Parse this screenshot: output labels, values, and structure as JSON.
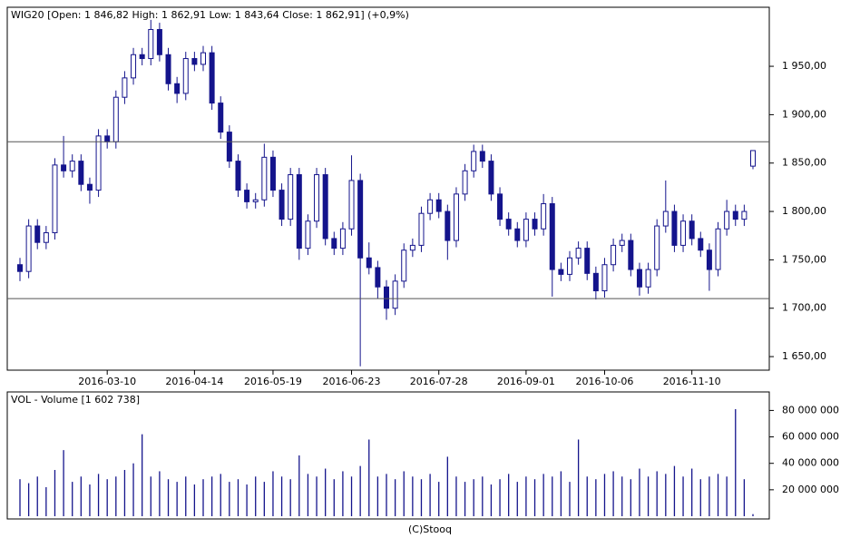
{
  "chart_data": [
    {
      "type": "candlestick",
      "title": "WIG20 [Open: 1 846,82  High: 1 862,91  Low: 1 843,64  Close: 1 862,91] (+0,9%)",
      "categories": [
        null,
        null,
        null,
        null,
        null,
        null,
        null,
        null,
        null,
        null,
        "2016-03-10",
        null,
        null,
        null,
        null,
        null,
        null,
        null,
        null,
        null,
        "2016-04-14",
        null,
        null,
        null,
        null,
        null,
        null,
        null,
        null,
        "2016-05-19",
        null,
        null,
        null,
        null,
        null,
        null,
        null,
        null,
        "2016-06-23",
        null,
        null,
        null,
        null,
        null,
        null,
        null,
        null,
        null,
        "2016-07-28",
        null,
        null,
        null,
        null,
        null,
        null,
        null,
        null,
        null,
        "2016-09-01",
        null,
        null,
        null,
        null,
        null,
        null,
        null,
        null,
        "2016-10-06",
        null,
        null,
        null,
        null,
        null,
        null,
        null,
        null,
        null,
        "2016-11-10",
        null,
        null,
        null,
        null,
        null,
        null,
        null
      ],
      "open": [
        1745,
        1738,
        1785,
        1768,
        1778,
        1848,
        1842,
        1852,
        1828,
        1822,
        1878,
        1872,
        1918,
        1938,
        1962,
        1958,
        1988,
        1962,
        1932,
        1922,
        1958,
        1952,
        1964,
        1912,
        1882,
        1852,
        1822,
        1810,
        1812,
        1856,
        1822,
        1792,
        1838,
        1762,
        1790,
        1838,
        1772,
        1762,
        1782,
        1832,
        1752,
        1742,
        1722,
        1700,
        1728,
        1760,
        1765,
        1798,
        1812,
        1800,
        1770,
        1818,
        1842,
        1862,
        1852,
        1818,
        1792,
        1782,
        1770,
        1792,
        1782,
        1808,
        1740,
        1735,
        1752,
        1762,
        1736,
        1718,
        1745,
        1765,
        1770,
        1740,
        1722,
        1740,
        1785,
        1800,
        1765,
        1790,
        1772,
        1760,
        1740,
        1782,
        1800,
        1792,
        1846.82
      ],
      "high": [
        1752,
        1792,
        1792,
        1785,
        1855,
        1878,
        1859,
        1859,
        1835,
        1885,
        1885,
        1925,
        1945,
        1969,
        1969,
        1998,
        1995,
        1969,
        1939,
        1965,
        1965,
        1971,
        1971,
        1919,
        1889,
        1859,
        1829,
        1819,
        1870,
        1863,
        1829,
        1845,
        1845,
        1797,
        1845,
        1845,
        1779,
        1789,
        1858,
        1839,
        1768,
        1749,
        1729,
        1735,
        1767,
        1772,
        1805,
        1819,
        1819,
        1807,
        1825,
        1849,
        1869,
        1869,
        1859,
        1825,
        1799,
        1789,
        1799,
        1799,
        1818,
        1815,
        1747,
        1759,
        1769,
        1769,
        1743,
        1752,
        1772,
        1777,
        1777,
        1747,
        1747,
        1792,
        1832,
        1807,
        1797,
        1797,
        1779,
        1767,
        1789,
        1812,
        1807,
        1807,
        1862.91
      ],
      "low": [
        1728,
        1731,
        1761,
        1761,
        1771,
        1835,
        1835,
        1821,
        1808,
        1815,
        1865,
        1865,
        1911,
        1931,
        1951,
        1951,
        1955,
        1925,
        1912,
        1915,
        1945,
        1945,
        1905,
        1875,
        1845,
        1815,
        1803,
        1803,
        1805,
        1815,
        1785,
        1785,
        1750,
        1755,
        1783,
        1765,
        1755,
        1755,
        1775,
        1640,
        1735,
        1710,
        1688,
        1693,
        1721,
        1753,
        1758,
        1791,
        1793,
        1750,
        1763,
        1811,
        1835,
        1845,
        1811,
        1785,
        1775,
        1763,
        1763,
        1775,
        1775,
        1712,
        1728,
        1728,
        1745,
        1729,
        1709,
        1711,
        1738,
        1758,
        1733,
        1713,
        1715,
        1733,
        1778,
        1758,
        1758,
        1765,
        1753,
        1718,
        1733,
        1775,
        1785,
        1785,
        1843.64
      ],
      "close": [
        1738,
        1785,
        1768,
        1778,
        1848,
        1842,
        1852,
        1828,
        1822,
        1878,
        1872,
        1918,
        1938,
        1962,
        1958,
        1988,
        1962,
        1932,
        1922,
        1958,
        1952,
        1964,
        1912,
        1882,
        1852,
        1822,
        1810,
        1812,
        1856,
        1822,
        1792,
        1838,
        1762,
        1790,
        1838,
        1772,
        1762,
        1782,
        1832,
        1752,
        1742,
        1722,
        1700,
        1728,
        1760,
        1765,
        1798,
        1812,
        1800,
        1770,
        1818,
        1842,
        1862,
        1852,
        1818,
        1792,
        1782,
        1770,
        1792,
        1782,
        1808,
        1740,
        1735,
        1752,
        1762,
        1736,
        1718,
        1745,
        1765,
        1770,
        1740,
        1722,
        1740,
        1785,
        1800,
        1765,
        1790,
        1772,
        1760,
        1740,
        1782,
        1800,
        1792,
        1800,
        1862.91
      ],
      "color": "#14148c",
      "ylim": [
        1636,
        2011
      ],
      "yticks": [
        {
          "value": 1650,
          "label": "1 650,00"
        },
        {
          "value": 1700,
          "label": "1 700,00"
        },
        {
          "value": 1750,
          "label": "1 750,00"
        },
        {
          "value": 1800,
          "label": "1 800,00"
        },
        {
          "value": 1850,
          "label": "1 850,00"
        },
        {
          "value": 1900,
          "label": "1 900,00"
        },
        {
          "value": 1950,
          "label": "1 950,00"
        }
      ],
      "hlines": [
        1872,
        1710
      ]
    },
    {
      "type": "bar",
      "title": "VOL - Volume [1 602 738]",
      "values": [
        28000000,
        25000000,
        30000000,
        22000000,
        35000000,
        50000000,
        26000000,
        30000000,
        24000000,
        32000000,
        28000000,
        30000000,
        35000000,
        40000000,
        62000000,
        30000000,
        34000000,
        28000000,
        26000000,
        30000000,
        24000000,
        28000000,
        30000000,
        32000000,
        26000000,
        28000000,
        24000000,
        30000000,
        26000000,
        34000000,
        30000000,
        28000000,
        46000000,
        32000000,
        30000000,
        36000000,
        28000000,
        34000000,
        30000000,
        38000000,
        58000000,
        30000000,
        32000000,
        28000000,
        34000000,
        30000000,
        28000000,
        32000000,
        26000000,
        45000000,
        30000000,
        26000000,
        28000000,
        30000000,
        24000000,
        28000000,
        32000000,
        26000000,
        30000000,
        28000000,
        32000000,
        30000000,
        34000000,
        26000000,
        58000000,
        30000000,
        28000000,
        32000000,
        34000000,
        30000000,
        28000000,
        36000000,
        30000000,
        34000000,
        32000000,
        38000000,
        30000000,
        36000000,
        28000000,
        30000000,
        32000000,
        30000000,
        81000000,
        28000000,
        1602738
      ],
      "color": "#14148c",
      "ylim": [
        0,
        94000000
      ],
      "yticks": [
        {
          "value": 20000000,
          "label": "20 000 000"
        },
        {
          "value": 40000000,
          "label": "40 000 000"
        },
        {
          "value": 60000000,
          "label": "60 000 000"
        },
        {
          "value": 80000000,
          "label": "80 000 000"
        }
      ]
    }
  ],
  "footer": "(C)Stooq"
}
